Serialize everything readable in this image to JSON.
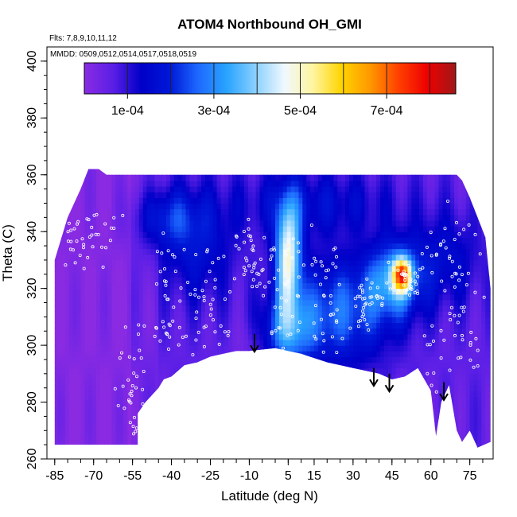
{
  "chart_data": {
    "type": "heatmap",
    "title": "ATOM4 Northbound OH_GMI",
    "flights_note": "Flts: 7,8,9,10,11,12",
    "dates_note": "MMDD: 0509,0512,0514,0517,0518,0519",
    "xlabel": "Latitude (deg N)",
    "ylabel": "Theta (C)",
    "xlim": [
      -88,
      84
    ],
    "ylim": [
      260,
      405
    ],
    "x_ticks": [
      -85,
      -70,
      -55,
      -40,
      -25,
      -10,
      5,
      15,
      30,
      45,
      60,
      75
    ],
    "y_ticks": [
      260,
      280,
      300,
      320,
      340,
      360,
      380,
      400
    ],
    "colorbar": {
      "range": [
        0,
        0.00086
      ],
      "tick_values": [
        0.0001,
        0.0003,
        0.0005,
        0.0007
      ],
      "tick_labels": [
        "1e-04",
        "3e-04",
        "5e-04",
        "7e-04"
      ],
      "colors": [
        "#8a2be2",
        "#5b1fe6",
        "#0000c8",
        "#0018d8",
        "#1e6aff",
        "#2aa4ff",
        "#8ad0ff",
        "#f0f8ff",
        "#fff5a0",
        "#ffd400",
        "#ff9800",
        "#ff4000",
        "#ee0000",
        "#a01818"
      ]
    },
    "top_boundary": [
      [
        -85,
        330
      ],
      [
        -80,
        345
      ],
      [
        -75,
        355
      ],
      [
        -72,
        362
      ],
      [
        -68,
        362
      ],
      [
        -65,
        360
      ],
      [
        70,
        360
      ],
      [
        72,
        358
      ],
      [
        75,
        352
      ],
      [
        78,
        345
      ],
      [
        81,
        338
      ],
      [
        83,
        320
      ]
    ],
    "bottom_boundary": [
      [
        83,
        266
      ],
      [
        78,
        264
      ],
      [
        75,
        270
      ],
      [
        72,
        266
      ],
      [
        70,
        270
      ],
      [
        67,
        286
      ],
      [
        64,
        280
      ],
      [
        62,
        268
      ],
      [
        60,
        284
      ],
      [
        55,
        292
      ],
      [
        50,
        289
      ],
      [
        45,
        288
      ],
      [
        40,
        290
      ],
      [
        30,
        292
      ],
      [
        20,
        294
      ],
      [
        10,
        297
      ],
      [
        5,
        298
      ],
      [
        0,
        299
      ],
      [
        -10,
        298
      ],
      [
        -15,
        298
      ],
      [
        -20,
        297
      ],
      [
        -25,
        296
      ],
      [
        -30,
        294
      ],
      [
        -35,
        293
      ],
      [
        -40,
        289
      ],
      [
        -43,
        288
      ],
      [
        -45,
        285
      ],
      [
        -50,
        280
      ],
      [
        -53,
        276
      ],
      [
        -53,
        265
      ],
      [
        -85,
        265
      ]
    ],
    "background_level": 6e-05,
    "field_features": [
      {
        "lat": 5,
        "theta": 332,
        "amp": 0.0004,
        "sx": 3.5,
        "sy": 14
      },
      {
        "lat": 5,
        "theta": 305,
        "amp": 0.0002,
        "sx": 7,
        "sy": 9
      },
      {
        "lat": 49,
        "theta": 325,
        "amp": 0.00044,
        "sx": 2.5,
        "sy": 4
      },
      {
        "lat": 46,
        "theta": 323,
        "amp": 0.00026,
        "sx": 7,
        "sy": 9
      },
      {
        "lat": 25,
        "theta": 312,
        "amp": 0.0002,
        "sx": 14,
        "sy": 13
      },
      {
        "lat": -30,
        "theta": 335,
        "amp": 0.00011,
        "sx": 10,
        "sy": 14
      },
      {
        "lat": -42,
        "theta": 345,
        "amp": 0.00012,
        "sx": 9,
        "sy": 7
      },
      {
        "lat": 15,
        "theta": 350,
        "amp": 0.0001,
        "sx": 22,
        "sy": 8
      },
      {
        "lat": 65,
        "theta": 330,
        "amp": 0.0001,
        "sx": 10,
        "sy": 12
      },
      {
        "lat": -10,
        "theta": 300,
        "amp": -3e-05,
        "sx": 5,
        "sy": 6
      }
    ],
    "arrows": [
      {
        "lat": -8,
        "theta_top": 304,
        "theta_tip": 298
      },
      {
        "lat": 38,
        "theta_top": 292,
        "theta_tip": 286
      },
      {
        "lat": 44,
        "theta_top": 290,
        "theta_tip": 284
      },
      {
        "lat": 65,
        "theta_top": 287,
        "theta_tip": 281
      }
    ],
    "sample_points_note": "white open circles along flight tracks"
  }
}
